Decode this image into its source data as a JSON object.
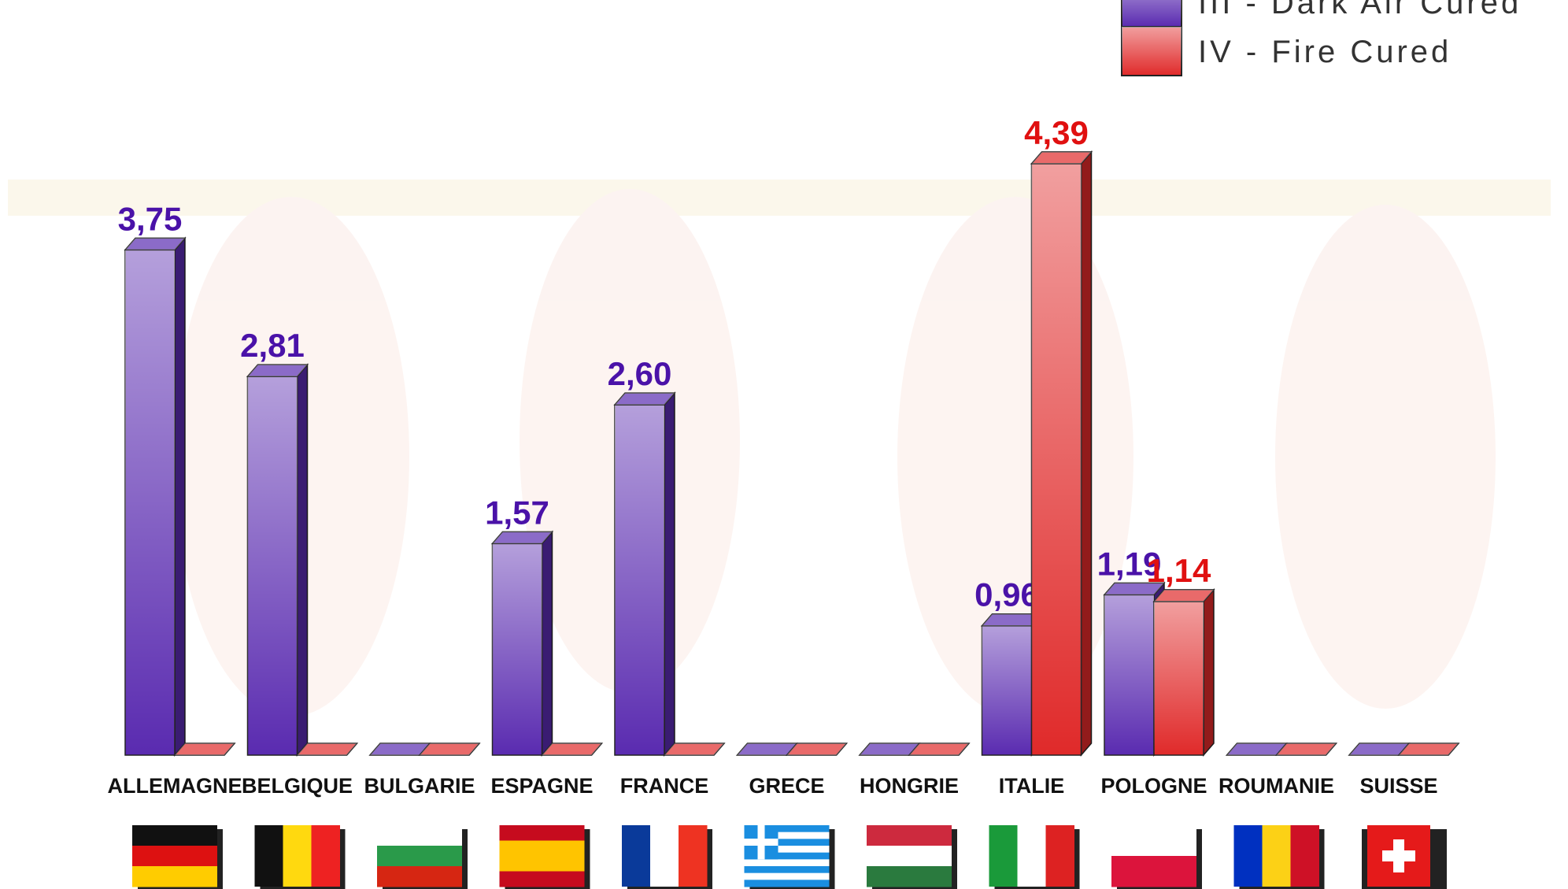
{
  "chart_data": {
    "type": "bar3d",
    "categories": [
      "ALLEMAGNE",
      "BELGIQUE",
      "BULGARIE",
      "ESPAGNE",
      "FRANCE",
      "GRECE",
      "HONGRIE",
      "ITALIE",
      "POLOGNE",
      "ROUMANIE",
      "SUISSE"
    ],
    "series": [
      {
        "name": "III  -  Dark Air Cured",
        "color": "#5a2bb0",
        "values": [
          3.75,
          2.81,
          0,
          1.57,
          2.6,
          0,
          0,
          0.96,
          1.19,
          0,
          0
        ],
        "value_labels": [
          "3,75",
          "2,81",
          null,
          "1,57",
          "2,60",
          null,
          null,
          "0,96",
          "1,19",
          null,
          null
        ],
        "label_color": "#4a12a8"
      },
      {
        "name": "IV  -  Fire Cured",
        "color": "#e02a2a",
        "values": [
          0,
          0,
          0,
          0,
          0,
          0,
          0,
          4.39,
          1.14,
          0,
          0
        ],
        "value_labels": [
          null,
          null,
          null,
          null,
          null,
          null,
          null,
          "4,39",
          "1,14",
          null,
          null
        ],
        "label_color": "#e01010"
      }
    ],
    "ylim": [
      0,
      4.5
    ]
  }
}
